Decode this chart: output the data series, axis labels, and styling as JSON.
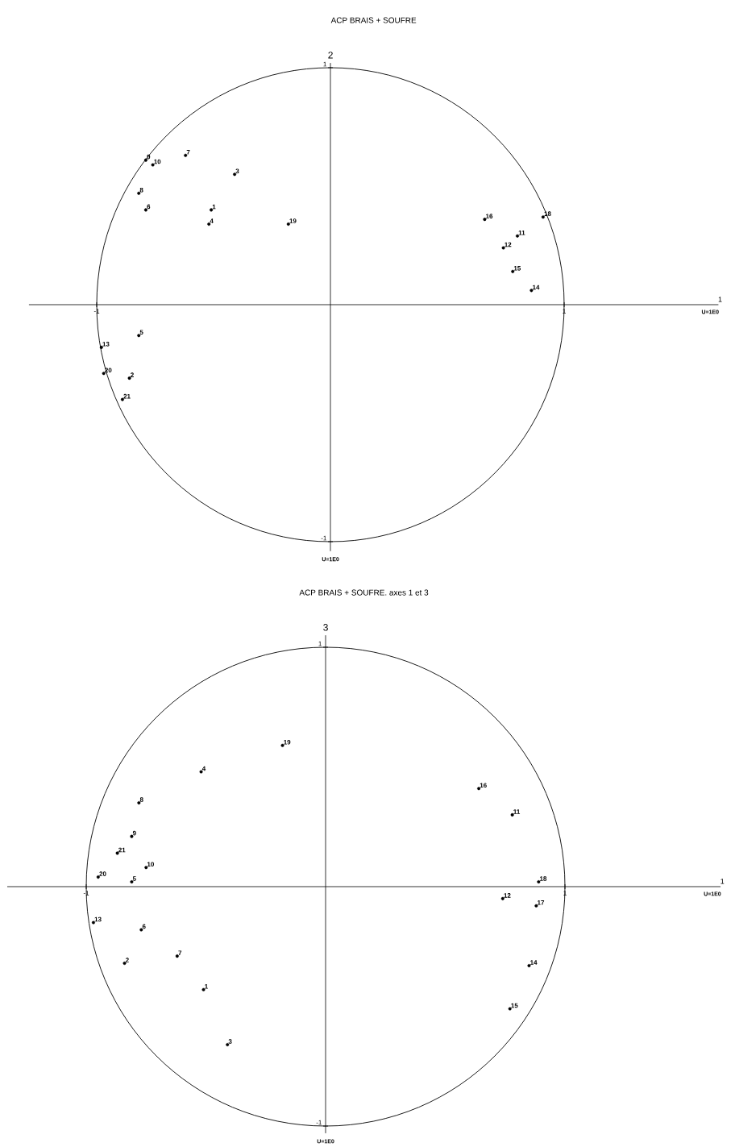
{
  "chart_data": [
    {
      "type": "scatter",
      "title": "ACP BRAIS + SOUFRE",
      "xlabel": "1",
      "ylabel": "2",
      "xlim": [
        -1.29,
        1.66
      ],
      "ylim": [
        -1.04,
        1.02
      ],
      "marker": "circle",
      "xticks": [
        -1,
        1
      ],
      "yticks": [
        -1,
        1
      ],
      "series": [
        {
          "color": "#000000",
          "x": [
            -0.79,
            -0.76,
            -0.62,
            -0.41,
            -0.82,
            -0.79,
            -0.51,
            -0.52,
            -0.18,
            0.66,
            0.91,
            0.8,
            0.74,
            0.78,
            0.86,
            -0.82,
            -0.98,
            -0.97,
            -0.86,
            -0.89
          ],
          "values": [
            0.61,
            0.59,
            0.63,
            0.55,
            0.47,
            0.4,
            0.4,
            0.34,
            0.34,
            0.36,
            0.37,
            0.29,
            0.24,
            0.14,
            0.06,
            -0.13,
            -0.18,
            -0.29,
            -0.31,
            -0.4
          ]
        }
      ],
      "annotations": [
        "U=1E0",
        "U=1E0",
        {
          "text": "9",
          "x": -0.79,
          "y": 0.61
        },
        {
          "text": "10",
          "x": -0.76,
          "y": 0.59
        },
        {
          "text": "7",
          "x": -0.62,
          "y": 0.63
        },
        {
          "text": "3",
          "x": -0.41,
          "y": 0.55
        },
        {
          "text": "8",
          "x": -0.82,
          "y": 0.47
        },
        {
          "text": "6",
          "x": -0.79,
          "y": 0.4
        },
        {
          "text": "1",
          "x": -0.51,
          "y": 0.4
        },
        {
          "text": "4",
          "x": -0.52,
          "y": 0.34
        },
        {
          "text": "19",
          "x": -0.18,
          "y": 0.34
        },
        {
          "text": "16",
          "x": 0.66,
          "y": 0.36
        },
        {
          "text": "18",
          "x": 0.91,
          "y": 0.37
        },
        {
          "text": "11",
          "x": 0.8,
          "y": 0.29
        },
        {
          "text": "12",
          "x": 0.74,
          "y": 0.24
        },
        {
          "text": "15",
          "x": 0.78,
          "y": 0.14
        },
        {
          "text": "14",
          "x": 0.86,
          "y": 0.06
        },
        {
          "text": "5",
          "x": -0.82,
          "y": -0.13
        },
        {
          "text": "13",
          "x": -0.98,
          "y": -0.18
        },
        {
          "text": "20",
          "x": -0.97,
          "y": -0.29
        },
        {
          "text": "2",
          "x": -0.86,
          "y": -0.31
        },
        {
          "text": "21",
          "x": -0.89,
          "y": -0.4
        }
      ]
    },
    {
      "type": "scatter",
      "title": "ACP BRAIS + SOUFRE. axes 1 et 3",
      "xlabel": "1",
      "ylabel": "3",
      "xlim": [
        -1.33,
        1.65
      ],
      "ylim": [
        -1.03,
        1.05
      ],
      "marker": "circle",
      "xticks": [
        -1,
        1
      ],
      "yticks": [
        -1,
        1
      ],
      "series": [
        {
          "color": "#000000",
          "x": [
            -0.18,
            -0.52,
            -0.78,
            -0.81,
            -0.87,
            -0.75,
            -0.95,
            -0.81,
            -0.97,
            -0.77,
            -0.84,
            -0.62,
            -0.51,
            -0.41,
            0.64,
            0.78,
            0.89,
            0.74,
            0.88,
            0.85,
            0.77
          ],
          "values": [
            0.59,
            0.48,
            0.35,
            0.21,
            0.14,
            0.08,
            0.04,
            0.02,
            -0.15,
            -0.18,
            -0.32,
            -0.29,
            -0.43,
            -0.66,
            0.41,
            0.3,
            0.02,
            -0.05,
            -0.08,
            -0.33,
            -0.51
          ]
        }
      ],
      "annotations": [
        "U=1E0",
        "U=1E0",
        {
          "text": "19",
          "x": -0.18,
          "y": 0.59
        },
        {
          "text": "4",
          "x": -0.52,
          "y": 0.48
        },
        {
          "text": "8",
          "x": -0.78,
          "y": 0.35
        },
        {
          "text": "9",
          "x": -0.81,
          "y": 0.21
        },
        {
          "text": "21",
          "x": -0.87,
          "y": 0.14
        },
        {
          "text": "10",
          "x": -0.75,
          "y": 0.08
        },
        {
          "text": "20",
          "x": -0.95,
          "y": 0.04
        },
        {
          "text": "5",
          "x": -0.81,
          "y": 0.02
        },
        {
          "text": "13",
          "x": -0.97,
          "y": -0.15
        },
        {
          "text": "6",
          "x": -0.77,
          "y": -0.18
        },
        {
          "text": "2",
          "x": -0.84,
          "y": -0.32
        },
        {
          "text": "7",
          "x": -0.62,
          "y": -0.29
        },
        {
          "text": "1",
          "x": -0.51,
          "y": -0.43
        },
        {
          "text": "3",
          "x": -0.41,
          "y": -0.66
        },
        {
          "text": "16",
          "x": 0.64,
          "y": 0.41
        },
        {
          "text": "11",
          "x": 0.78,
          "y": 0.3
        },
        {
          "text": "18",
          "x": 0.89,
          "y": 0.02
        },
        {
          "text": "12",
          "x": 0.74,
          "y": -0.05
        },
        {
          "text": "17",
          "x": 0.88,
          "y": -0.08
        },
        {
          "text": "14",
          "x": 0.85,
          "y": -0.33
        },
        {
          "text": "15",
          "x": 0.77,
          "y": -0.51
        }
      ]
    }
  ]
}
